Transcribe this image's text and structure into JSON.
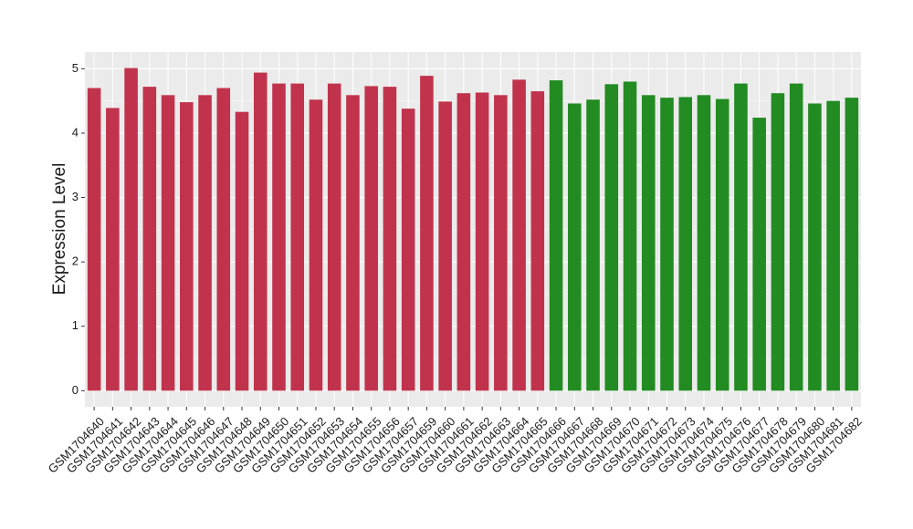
{
  "chart_data": {
    "type": "bar",
    "y_label": "Expression Level",
    "categories": [
      "GSM1704640",
      "GSM1704641",
      "GSM1704642",
      "GSM1704643",
      "GSM1704644",
      "GSM1704645",
      "GSM1704646",
      "GSM1704647",
      "GSM1704648",
      "GSM1704649",
      "GSM1704650",
      "GSM1704651",
      "GSM1704652",
      "GSM1704653",
      "GSM1704654",
      "GSM1704655",
      "GSM1704656",
      "GSM1704657",
      "GSM1704659",
      "GSM1704660",
      "GSM1704661",
      "GSM1704662",
      "GSM1704663",
      "GSM1704664",
      "GSM1704665",
      "GSM1704666",
      "GSM1704667",
      "GSM1704668",
      "GSM1704669",
      "GSM1704670",
      "GSM1704671",
      "GSM1704672",
      "GSM1704673",
      "GSM1704674",
      "GSM1704675",
      "GSM1704676",
      "GSM1704677",
      "GSM1704678",
      "GSM1704679",
      "GSM1704680",
      "GSM1704681",
      "GSM1704682"
    ],
    "values": [
      4.7,
      4.39,
      5.01,
      4.72,
      4.59,
      4.48,
      4.59,
      4.7,
      4.33,
      4.94,
      4.77,
      4.77,
      4.52,
      4.77,
      4.59,
      4.73,
      4.72,
      4.38,
      4.89,
      4.49,
      4.62,
      4.63,
      4.59,
      4.83,
      4.65,
      4.82,
      4.46,
      4.52,
      4.76,
      4.8,
      4.59,
      4.55,
      4.56,
      4.59,
      4.53,
      4.77,
      4.24,
      4.62,
      4.77,
      4.46,
      4.5,
      4.55
    ],
    "colors": [
      "#c1334c",
      "#c1334c",
      "#c1334c",
      "#c1334c",
      "#c1334c",
      "#c1334c",
      "#c1334c",
      "#c1334c",
      "#c1334c",
      "#c1334c",
      "#c1334c",
      "#c1334c",
      "#c1334c",
      "#c1334c",
      "#c1334c",
      "#c1334c",
      "#c1334c",
      "#c1334c",
      "#c1334c",
      "#c1334c",
      "#c1334c",
      "#c1334c",
      "#c1334c",
      "#c1334c",
      "#c1334c",
      "#228b22",
      "#228b22",
      "#228b22",
      "#228b22",
      "#228b22",
      "#228b22",
      "#228b22",
      "#228b22",
      "#228b22",
      "#228b22",
      "#228b22",
      "#228b22",
      "#228b22",
      "#228b22",
      "#228b22",
      "#228b22",
      "#228b22"
    ],
    "ylim": [
      -0.25,
      5.26
    ],
    "yticks": [
      0,
      1,
      2,
      3,
      4,
      5
    ],
    "grid": true
  }
}
